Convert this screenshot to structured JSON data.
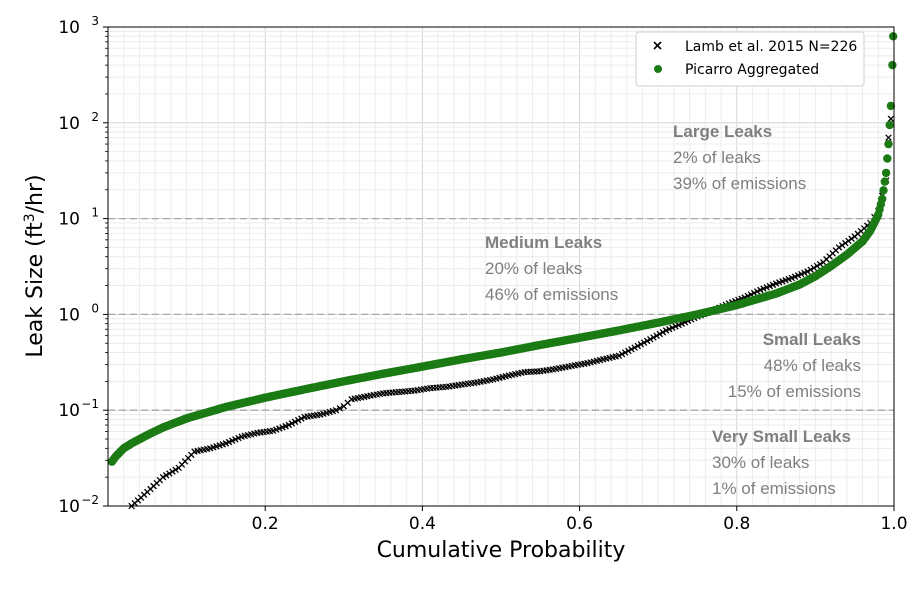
{
  "chart_data": {
    "type": "scatter",
    "xlabel": "Cumulative Probability",
    "ylabel_prefix": "Leak Size (ft",
    "ylabel_sup": "3",
    "ylabel_suffix": "/hr)",
    "yscale": "log",
    "xlim": [
      0.0,
      1.0
    ],
    "ylim": [
      0.01,
      1000
    ],
    "grid": true,
    "x_ticks": [
      0.2,
      0.4,
      0.6,
      0.8,
      1.0
    ],
    "x_tick_labels": [
      "0.2",
      "0.4",
      "0.6",
      "0.8",
      "1.0"
    ],
    "y_ticks": [
      0.01,
      0.1,
      1,
      10,
      100,
      1000
    ],
    "y_tick_bases": [
      "10",
      "10",
      "10",
      "10",
      "10",
      "10"
    ],
    "y_tick_exps": [
      "−2",
      "−1",
      "0",
      "1",
      "2",
      "3"
    ],
    "threshold_lines": [
      0.1,
      1,
      10
    ],
    "legend_position": "top-right",
    "series": [
      {
        "name": "Lamb et al. 2015 N=226",
        "marker": "x",
        "color": "#000000",
        "points": [
          [
            0.03,
            0.01
          ],
          [
            0.05,
            0.014
          ],
          [
            0.07,
            0.02
          ],
          [
            0.09,
            0.025
          ],
          [
            0.11,
            0.037
          ],
          [
            0.13,
            0.04
          ],
          [
            0.15,
            0.045
          ],
          [
            0.17,
            0.053
          ],
          [
            0.19,
            0.058
          ],
          [
            0.21,
            0.061
          ],
          [
            0.23,
            0.07
          ],
          [
            0.25,
            0.085
          ],
          [
            0.27,
            0.09
          ],
          [
            0.29,
            0.1
          ],
          [
            0.3,
            0.11
          ],
          [
            0.31,
            0.13
          ],
          [
            0.33,
            0.14
          ],
          [
            0.35,
            0.15
          ],
          [
            0.37,
            0.155
          ],
          [
            0.39,
            0.16
          ],
          [
            0.41,
            0.17
          ],
          [
            0.43,
            0.175
          ],
          [
            0.45,
            0.185
          ],
          [
            0.47,
            0.195
          ],
          [
            0.49,
            0.21
          ],
          [
            0.51,
            0.23
          ],
          [
            0.53,
            0.25
          ],
          [
            0.55,
            0.255
          ],
          [
            0.57,
            0.27
          ],
          [
            0.59,
            0.29
          ],
          [
            0.61,
            0.31
          ],
          [
            0.63,
            0.34
          ],
          [
            0.65,
            0.37
          ],
          [
            0.67,
            0.45
          ],
          [
            0.69,
            0.55
          ],
          [
            0.71,
            0.68
          ],
          [
            0.73,
            0.8
          ],
          [
            0.75,
            0.95
          ],
          [
            0.77,
            1.1
          ],
          [
            0.79,
            1.3
          ],
          [
            0.81,
            1.5
          ],
          [
            0.83,
            1.8
          ],
          [
            0.85,
            2.1
          ],
          [
            0.87,
            2.4
          ],
          [
            0.89,
            2.8
          ],
          [
            0.91,
            3.5
          ],
          [
            0.93,
            5.0
          ],
          [
            0.95,
            6.5
          ],
          [
            0.97,
            9.0
          ],
          [
            0.98,
            12.0
          ],
          [
            0.99,
            25.0
          ],
          [
            0.993,
            70.0
          ],
          [
            0.996,
            110.0
          ]
        ]
      },
      {
        "name": "Picarro Aggregated",
        "marker": "o",
        "color": "#1b7a14",
        "points": [
          [
            0.005,
            0.029
          ],
          [
            0.01,
            0.033
          ],
          [
            0.02,
            0.04
          ],
          [
            0.03,
            0.045
          ],
          [
            0.05,
            0.055
          ],
          [
            0.07,
            0.066
          ],
          [
            0.1,
            0.082
          ],
          [
            0.15,
            0.108
          ],
          [
            0.2,
            0.135
          ],
          [
            0.25,
            0.165
          ],
          [
            0.3,
            0.2
          ],
          [
            0.35,
            0.24
          ],
          [
            0.4,
            0.285
          ],
          [
            0.45,
            0.34
          ],
          [
            0.5,
            0.4
          ],
          [
            0.55,
            0.48
          ],
          [
            0.6,
            0.57
          ],
          [
            0.65,
            0.68
          ],
          [
            0.7,
            0.82
          ],
          [
            0.75,
            1.0
          ],
          [
            0.8,
            1.25
          ],
          [
            0.85,
            1.65
          ],
          [
            0.88,
            2.05
          ],
          [
            0.9,
            2.5
          ],
          [
            0.92,
            3.2
          ],
          [
            0.94,
            4.2
          ],
          [
            0.96,
            5.8
          ],
          [
            0.97,
            7.5
          ],
          [
            0.98,
            11.0
          ],
          [
            0.985,
            16.0
          ],
          [
            0.99,
            30.0
          ],
          [
            0.993,
            60.0
          ],
          [
            0.996,
            150.0
          ],
          [
            0.998,
            400.0
          ],
          [
            0.999,
            800.0
          ]
        ]
      }
    ],
    "annotations": [
      {
        "title": "Large Leaks",
        "line1": "2% of leaks",
        "line2": "39% of emissions"
      },
      {
        "title": "Medium Leaks",
        "line1": "20% of leaks",
        "line2": "46% of emissions"
      },
      {
        "title": "Small Leaks",
        "line1": "48% of leaks",
        "line2": "15% of emissions"
      },
      {
        "title": "Very Small Leaks",
        "line1": "30% of leaks",
        "line2": "1% of emissions"
      }
    ]
  }
}
